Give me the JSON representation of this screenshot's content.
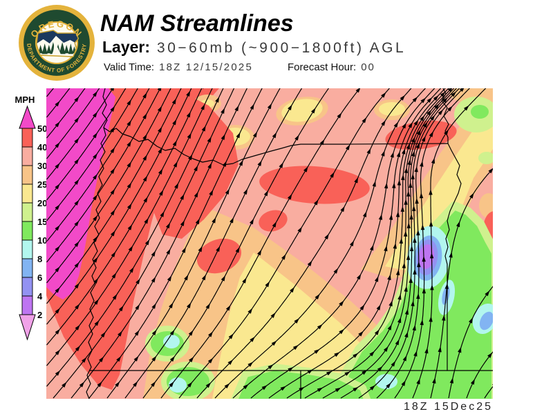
{
  "header": {
    "title": "NAM Streamlines",
    "layer_label": "Layer:",
    "layer_value": "30−60mb (~900−1800ft) AGL",
    "valid_time_label": "Valid Time:",
    "valid_time_value": "18Z 12/15/2025",
    "forecast_hour_label": "Forecast Hour:",
    "forecast_hour_value": "00"
  },
  "logo": {
    "top_text": "OREGON",
    "bottom_text": "DEPARTMENT OF FORESTRY",
    "gold": "#E4B33C",
    "ring_green": "#1F4A30",
    "sky_navy": "#1C3A5E",
    "cream": "#FDFBEF"
  },
  "legend": {
    "title": "MPH",
    "tick_labels": [
      "50",
      "40",
      "30",
      "25",
      "20",
      "15",
      "10",
      "8",
      "6",
      "4",
      "2"
    ],
    "above_max_color": "#F24AC8",
    "band_colors": [
      "#F96158",
      "#F9ADA0",
      "#F8C488",
      "#FAE890",
      "#CFF18E",
      "#80E95E",
      "#B2F6EE",
      "#82B4F2",
      "#9392F2",
      "#BE75F1"
    ],
    "below_min_color": "#F0A2E8"
  },
  "map": {
    "timestamp": "18Z 15Dec25",
    "speed_colors": {
      "gt50": "#F24AC8",
      "s40_50": "#F96158",
      "s30_40": "#F9ADA0",
      "s25_30": "#F8C488",
      "s20_25": "#FAE890",
      "s15_20": "#CFF18E",
      "s10_15": "#80E95E",
      "s8_10": "#B2F6EE",
      "s6_8": "#82B4F2",
      "s4_6": "#9392F2",
      "s2_4": "#BE75F1"
    },
    "stream_color": "#000000",
    "border_color": "#000000"
  }
}
